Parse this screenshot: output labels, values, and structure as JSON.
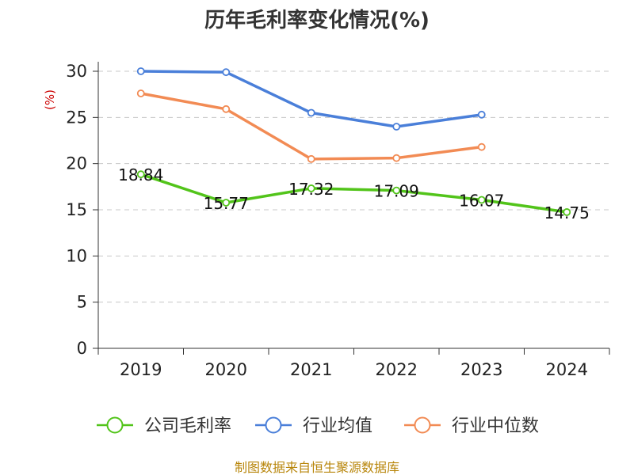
{
  "chart_data": {
    "type": "line",
    "title": "历年毛利率变化情况(%)",
    "ylabel": "(%)",
    "categories": [
      "2019",
      "2020",
      "2021",
      "2022",
      "2023",
      "2024"
    ],
    "yticks": [
      "0",
      "5",
      "10",
      "15",
      "20",
      "25",
      "30"
    ],
    "ylim": [
      0,
      30
    ],
    "grid": true,
    "legend_position": "bottom",
    "series": [
      {
        "name": "公司毛利率",
        "color": "#52c41a",
        "values": [
          18.84,
          15.77,
          17.32,
          17.09,
          16.07,
          14.75
        ],
        "labels": [
          "18.84",
          "15.77",
          "17.32",
          "17.09",
          "16.07",
          "14.75"
        ]
      },
      {
        "name": "行业均值",
        "color": "#4a7fd9",
        "values": [
          30.0,
          29.9,
          25.5,
          24.0,
          25.3,
          null
        ]
      },
      {
        "name": "行业中位数",
        "color": "#f28b54",
        "values": [
          27.6,
          25.9,
          20.5,
          20.6,
          21.8,
          null
        ]
      }
    ],
    "source": "制图数据来自恒生聚源数据库"
  }
}
